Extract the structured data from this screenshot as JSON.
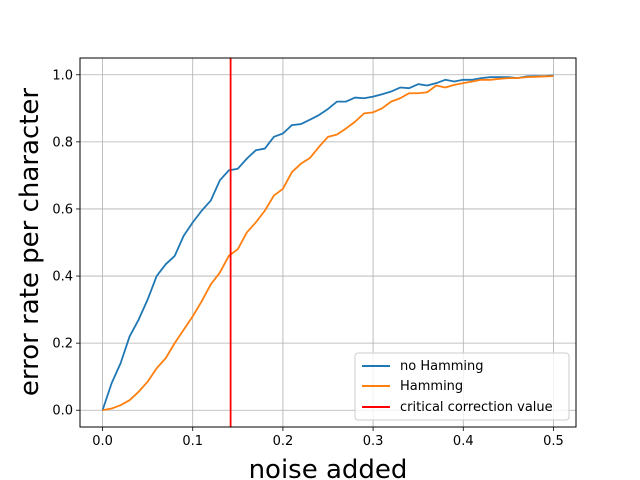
{
  "chart_data": {
    "type": "line",
    "xlabel": "noise added",
    "ylabel": "error rate per character",
    "xlim": [
      -0.025,
      0.525
    ],
    "ylim": [
      -0.05,
      1.05
    ],
    "xticks": [
      0.0,
      0.1,
      0.2,
      0.3,
      0.4,
      0.5
    ],
    "xtick_labels": [
      "0.0",
      "0.1",
      "0.2",
      "0.3",
      "0.4",
      "0.5"
    ],
    "yticks": [
      0.0,
      0.2,
      0.4,
      0.6,
      0.8,
      1.0
    ],
    "ytick_labels": [
      "0.0",
      "0.2",
      "0.4",
      "0.6",
      "0.8",
      "1.0"
    ],
    "grid": true,
    "legend_position": "lower-right",
    "x": [
      0.0,
      0.01,
      0.02,
      0.03,
      0.04,
      0.05,
      0.06,
      0.07,
      0.08,
      0.09,
      0.1,
      0.11,
      0.12,
      0.13,
      0.14,
      0.15,
      0.16,
      0.17,
      0.18,
      0.19,
      0.2,
      0.21,
      0.22,
      0.23,
      0.24,
      0.25,
      0.26,
      0.27,
      0.28,
      0.29,
      0.3,
      0.31,
      0.32,
      0.33,
      0.34,
      0.35,
      0.36,
      0.37,
      0.38,
      0.39,
      0.4,
      0.41,
      0.42,
      0.43,
      0.44,
      0.45,
      0.46,
      0.47,
      0.48,
      0.49,
      0.5
    ],
    "series": [
      {
        "name": "no Hamming",
        "color": "#1f77b4",
        "values": [
          0.0,
          0.08,
          0.14,
          0.22,
          0.27,
          0.33,
          0.4,
          0.435,
          0.46,
          0.52,
          0.56,
          0.595,
          0.625,
          0.685,
          0.715,
          0.72,
          0.75,
          0.775,
          0.78,
          0.815,
          0.825,
          0.85,
          0.853,
          0.866,
          0.88,
          0.898,
          0.92,
          0.92,
          0.932,
          0.93,
          0.935,
          0.942,
          0.95,
          0.962,
          0.96,
          0.972,
          0.968,
          0.975,
          0.985,
          0.98,
          0.985,
          0.985,
          0.99,
          0.993,
          0.993,
          0.993,
          0.99,
          0.995,
          0.996,
          0.996,
          0.998
        ]
      },
      {
        "name": "Hamming",
        "color": "#ff7f0e",
        "values": [
          0.0,
          0.005,
          0.015,
          0.03,
          0.055,
          0.085,
          0.125,
          0.155,
          0.2,
          0.24,
          0.28,
          0.325,
          0.375,
          0.41,
          0.46,
          0.48,
          0.53,
          0.56,
          0.595,
          0.64,
          0.66,
          0.71,
          0.735,
          0.752,
          0.785,
          0.815,
          0.822,
          0.84,
          0.86,
          0.885,
          0.888,
          0.9,
          0.92,
          0.93,
          0.945,
          0.945,
          0.948,
          0.968,
          0.962,
          0.97,
          0.975,
          0.98,
          0.985,
          0.985,
          0.988,
          0.99,
          0.99,
          0.993,
          0.994,
          0.995,
          0.996
        ]
      }
    ],
    "vline": {
      "name": "critical correction value",
      "x": 0.142,
      "color": "#ff0000"
    }
  }
}
